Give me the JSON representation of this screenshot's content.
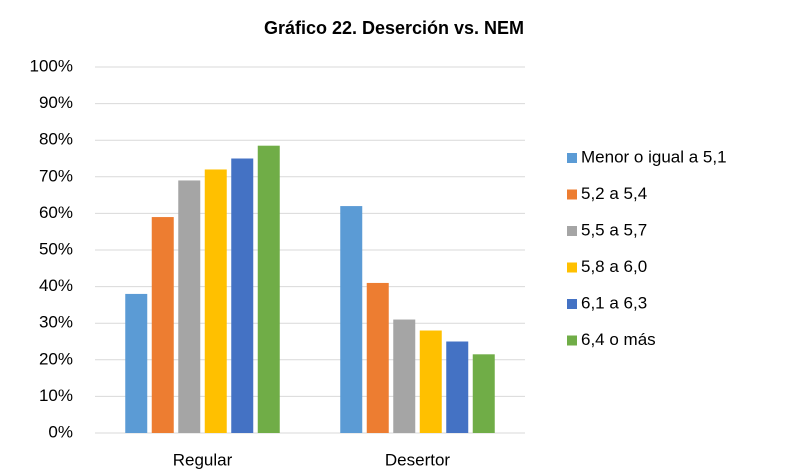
{
  "chart_data": {
    "type": "bar",
    "title": "Gráfico 22. Deserción vs. NEM",
    "categories": [
      "Regular",
      "Desertor"
    ],
    "series": [
      {
        "name": "Menor o igual a 5,1",
        "color": "#5b9bd5",
        "values": [
          38,
          62
        ]
      },
      {
        "name": "5,2 a 5,4",
        "color": "#ed7d31",
        "values": [
          59,
          41
        ]
      },
      {
        "name": "5,5 a 5,7",
        "color": "#a5a5a5",
        "values": [
          69,
          31
        ]
      },
      {
        "name": "5,8 a 6,0",
        "color": "#ffc000",
        "values": [
          72,
          28
        ]
      },
      {
        "name": "6,1 a 6,3",
        "color": "#4472c4",
        "values": [
          75,
          25
        ]
      },
      {
        "name": "6,4 o más",
        "color": "#70ad47",
        "values": [
          78.5,
          21.5
        ]
      }
    ],
    "ylim": [
      0,
      100
    ],
    "yticks": [
      {
        "value": 0,
        "label": "0%"
      },
      {
        "value": 10,
        "label": "10%"
      },
      {
        "value": 20,
        "label": "20%"
      },
      {
        "value": 30,
        "label": "30%"
      },
      {
        "value": 40,
        "label": "40%"
      },
      {
        "value": 50,
        "label": "50%"
      },
      {
        "value": 60,
        "label": "60%"
      },
      {
        "value": 70,
        "label": "70%"
      },
      {
        "value": 80,
        "label": "80%"
      },
      {
        "value": 90,
        "label": "90%"
      },
      {
        "value": 100,
        "label": "100%"
      }
    ],
    "grid": true,
    "legend": "right"
  }
}
